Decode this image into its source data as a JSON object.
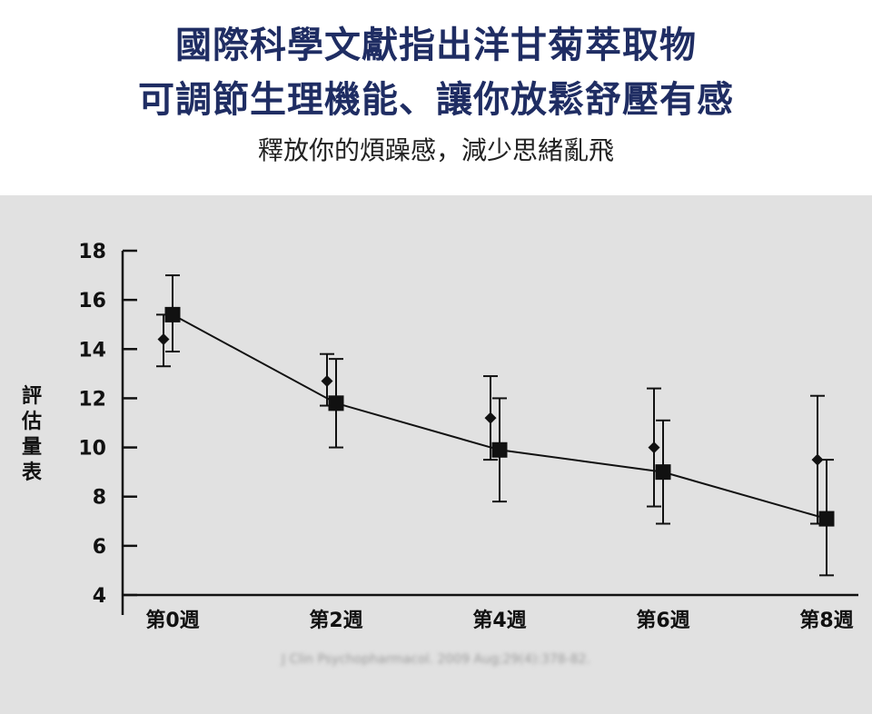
{
  "header": {
    "title_line1": "國際科學文獻指出洋甘菊萃取物",
    "title_line2": "可調節生理機能、讓你放鬆舒壓有感",
    "subtitle": "釋放你的煩躁感，減少思緒亂飛"
  },
  "citation": "J Clin Psychopharmacol. 2009 Aug;29(4):378-82.",
  "colors": {
    "title": "#1f2d63",
    "panel_background": "#e1e1e1",
    "marks": "#111111"
  },
  "chart_data": {
    "type": "line",
    "title": "",
    "xlabel": "",
    "ylabel": "評估量表",
    "categories": [
      "第0週",
      "第2週",
      "第4週",
      "第6週",
      "第8週"
    ],
    "ylim": [
      4,
      18
    ],
    "yticks": [
      4,
      6,
      8,
      10,
      12,
      14,
      16,
      18
    ],
    "grid": false,
    "legend": "none",
    "series": [
      {
        "marker": "diamond",
        "connected": false,
        "values": [
          14.4,
          12.7,
          11.2,
          10.0,
          9.5
        ],
        "err_low": [
          13.3,
          11.7,
          9.5,
          7.6,
          6.9
        ],
        "err_high": [
          15.4,
          13.8,
          12.9,
          12.4,
          12.1
        ]
      },
      {
        "marker": "square",
        "connected": true,
        "values": [
          15.4,
          11.8,
          9.9,
          9.0,
          7.1
        ],
        "err_low": [
          13.9,
          10.0,
          7.8,
          6.9,
          4.8
        ],
        "err_high": [
          17.0,
          13.6,
          12.0,
          11.1,
          9.5
        ]
      }
    ]
  }
}
